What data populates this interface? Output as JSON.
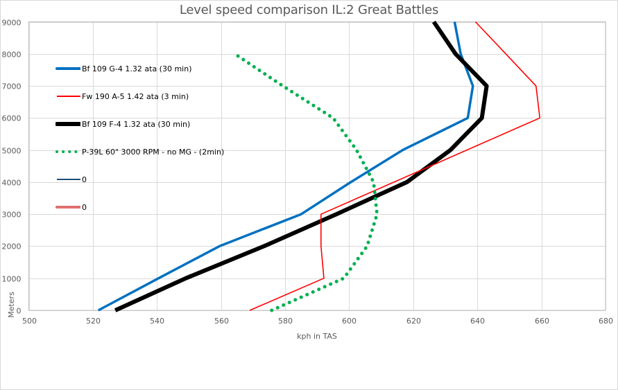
{
  "chart_data": {
    "type": "line",
    "title": "Level speed comparison IL:2 Great Battles",
    "xlabel": "kph in TAS",
    "ylabel": "Meters",
    "xlim": [
      500,
      680
    ],
    "ylim": [
      0,
      9000
    ],
    "x_ticks": [
      500,
      520,
      540,
      560,
      580,
      600,
      620,
      640,
      660,
      680
    ],
    "y_ticks": [
      0,
      1000,
      2000,
      3000,
      4000,
      5000,
      6000,
      7000,
      8000,
      9000
    ],
    "grid": true,
    "legend_position": "upper-left inside plot",
    "series": [
      {
        "name": "Bf 109 G-4 1.32 ata (30 min)",
        "color": "#0070C0",
        "style": "solid-thick",
        "altitude_m": [
          0,
          1000,
          2000,
          3000,
          4000,
          5000,
          6000,
          7000,
          8000,
          9000
        ],
        "speed_kph": [
          521.7,
          540.5,
          559.5,
          585.0,
          600.5,
          616.7,
          637.0,
          638.6,
          634.8,
          632.9
        ]
      },
      {
        "name": "Fw 190 A-5 1.42 ata (3 min)",
        "color": "#FF0000",
        "style": "solid-thin",
        "altitude_m": [
          0,
          1000,
          2000,
          3000,
          6000,
          7000,
          8000,
          9000
        ],
        "speed_kph": [
          569.0,
          592.1,
          591.2,
          591.2,
          659.5,
          658.3,
          648.9,
          639.4
        ]
      },
      {
        "name": "Bf 109 F-4 1.32 ata (30 min)",
        "color": "#000000",
        "style": "solid-extra-thick",
        "altitude_m": [
          0,
          1000,
          2000,
          3000,
          4000,
          5000,
          6000,
          7000,
          8000,
          9000
        ],
        "speed_kph": [
          527.0,
          549.0,
          573.4,
          596.0,
          618.0,
          631.6,
          641.4,
          642.9,
          633.2,
          626.4
        ]
      },
      {
        "name": "P-39L 60\" 3000 RPM - no MG - (2min)",
        "color": "#00B050",
        "style": "dotted",
        "altitude_m": [
          0,
          1000,
          2000,
          3000,
          4000,
          5000,
          6000,
          7000,
          8000
        ],
        "speed_kph": [
          575.8,
          598.3,
          605.6,
          608.7,
          607.6,
          602.3,
          595.0,
          579.3,
          564.3
        ]
      },
      {
        "name": "0",
        "color": "#1F4E79",
        "style": "solid-thin",
        "altitude_m": [],
        "speed_kph": []
      },
      {
        "name": "0",
        "color": "#E07070",
        "style": "solid-thick",
        "altitude_m": [],
        "speed_kph": []
      }
    ]
  },
  "legend": [
    {
      "label": "Bf 109 G-4 1.32 ata (30 min)"
    },
    {
      "label": "Fw 190 A-5 1.42 ata (3 min)"
    },
    {
      "label": "Bf 109 F-4 1.32 ata (30 min)"
    },
    {
      "label": "P-39L 60\" 3000 RPM - no MG - (2min)"
    },
    {
      "label": "0"
    },
    {
      "label": "0"
    }
  ]
}
